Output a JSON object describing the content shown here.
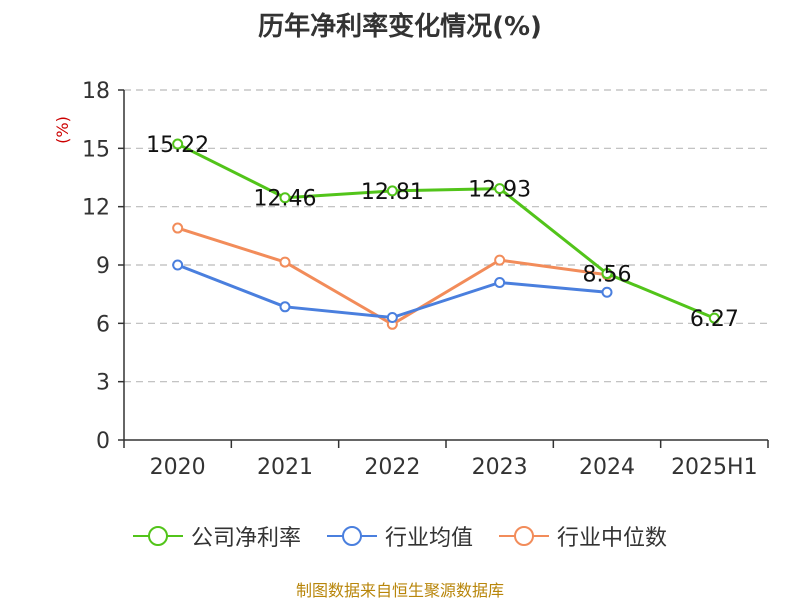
{
  "chart_data": {
    "type": "line",
    "title": "历年净利率变化情况(%)",
    "ylabel": "(%)",
    "ylim": [
      0,
      18
    ],
    "yticks": [
      0,
      3,
      6,
      9,
      12,
      15,
      18
    ],
    "categories": [
      "2020",
      "2021",
      "2022",
      "2023",
      "2024",
      "2025H1"
    ],
    "grid": true,
    "legend_position": "bottom",
    "series": [
      {
        "name": "公司净利率",
        "color": "#52c41a",
        "values": [
          15.22,
          12.46,
          12.81,
          12.93,
          8.56,
          6.27
        ],
        "labels": [
          "15.22",
          "12.46",
          "12.81",
          "12.93",
          "8.56",
          "6.27"
        ]
      },
      {
        "name": "行业均值",
        "color": "#4a7fde",
        "values": [
          9.0,
          6.85,
          6.3,
          8.1,
          7.6,
          null
        ]
      },
      {
        "name": "行业中位数",
        "color": "#f28c5a",
        "values": [
          10.9,
          9.15,
          5.95,
          9.25,
          8.5,
          null
        ]
      }
    ]
  },
  "footer": "制图数据来自恒生聚源数据库"
}
